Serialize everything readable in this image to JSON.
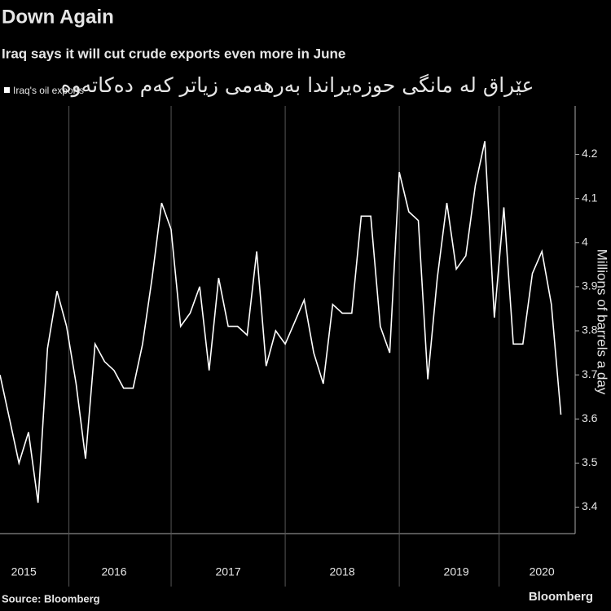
{
  "chart_data": {
    "type": "line",
    "title": "Down Again",
    "subtitle": "Iraq says it will cut crude exports even more in June",
    "annotation": "عێراق لە مانگی حوزەیراندا بەرهەمی زیاتر کەم دەکاتەوە",
    "y_axis_label": "Millions of barrels a day",
    "source": "Source: Bloomberg",
    "brand": "Bloomberg",
    "series": [
      {
        "name": "Iraq's oil exports",
        "color": "#ffffff",
        "values": [
          3.7,
          3.6,
          3.5,
          3.57,
          3.41,
          3.76,
          3.89,
          3.81,
          3.68,
          3.51,
          3.77,
          3.73,
          3.71,
          3.67,
          3.67,
          3.77,
          3.92,
          4.09,
          4.03,
          3.81,
          3.84,
          3.9,
          3.71,
          3.92,
          3.81,
          3.81,
          3.79,
          3.98,
          3.72,
          3.8,
          3.77,
          3.82,
          3.87,
          3.75,
          3.68,
          3.86,
          3.84,
          3.84,
          4.06,
          4.06,
          3.81,
          3.75,
          4.16,
          4.07,
          4.05,
          3.69,
          3.92,
          4.09,
          3.94,
          3.97,
          4.13,
          4.23,
          3.83,
          4.08,
          3.77,
          3.77,
          3.93,
          3.98,
          3.86,
          3.61
        ]
      }
    ],
    "xlim": [
      0,
      60.5
    ],
    "xticks": [
      {
        "value": 2.5,
        "label": "2015"
      },
      {
        "value": 12,
        "label": "2016"
      },
      {
        "value": 24,
        "label": "2017"
      },
      {
        "value": 36,
        "label": "2018"
      },
      {
        "value": 48,
        "label": "2019"
      },
      {
        "value": 57,
        "label": "2020"
      }
    ],
    "ylim": [
      3.34,
      4.31
    ],
    "yticks": [
      3.4,
      3.5,
      3.6,
      3.7,
      3.8,
      3.9,
      4.0,
      4.1,
      4.2
    ],
    "legend": "top-left"
  }
}
